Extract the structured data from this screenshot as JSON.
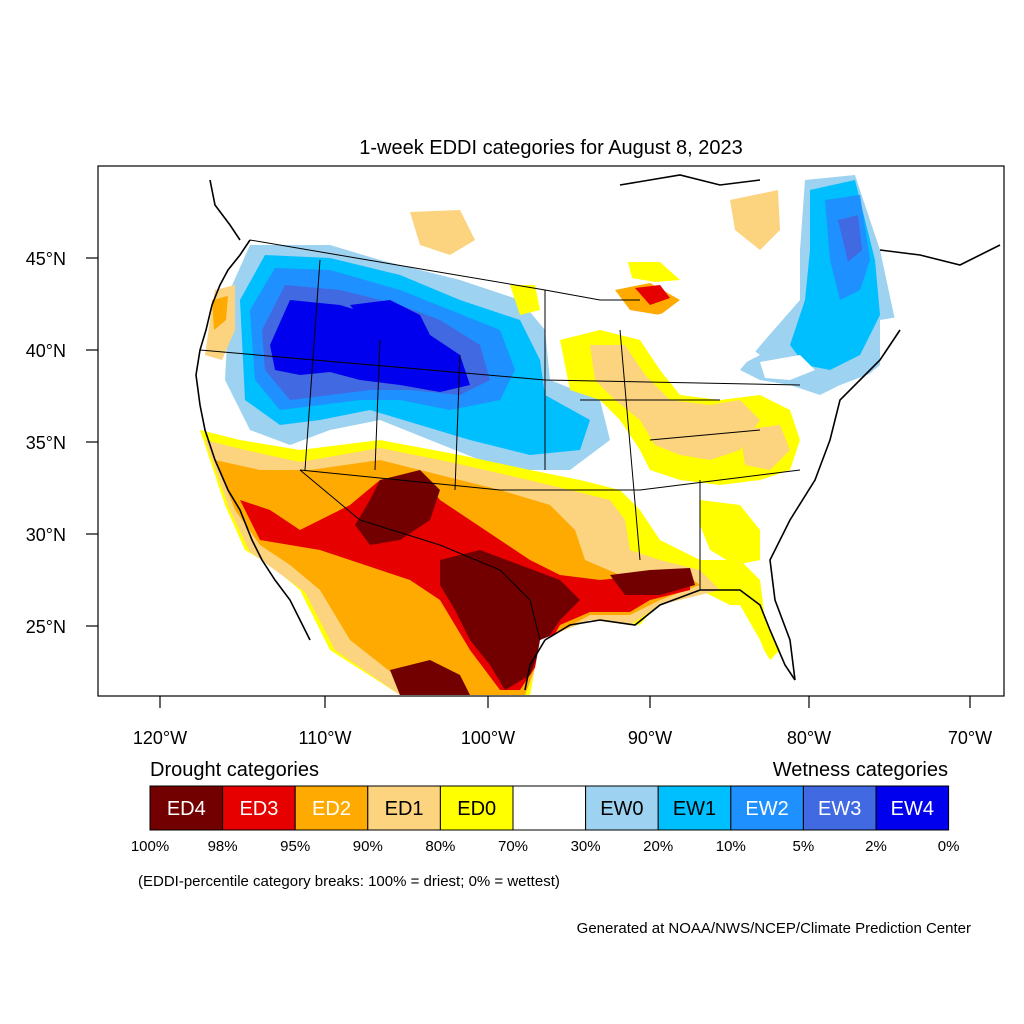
{
  "title": "1-week EDDI categories for August 8, 2023",
  "lat_ticks": [
    "45°N",
    "40°N",
    "35°N",
    "30°N",
    "25°N"
  ],
  "lon_ticks": [
    "120°W",
    "110°W",
    "100°W",
    "90°W",
    "80°W",
    "70°W"
  ],
  "legend": {
    "drought_title": "Drought categories",
    "wetness_title": "Wetness categories",
    "boxes": [
      {
        "label": "ED4",
        "color": "#730000",
        "text_color": "#ffffff"
      },
      {
        "label": "ED3",
        "color": "#e60000",
        "text_color": "#ffffff"
      },
      {
        "label": "ED2",
        "color": "#ffaa00",
        "text_color": "#ffffff"
      },
      {
        "label": "ED1",
        "color": "#fcd37f",
        "text_color": "#000000"
      },
      {
        "label": "ED0",
        "color": "#ffff00",
        "text_color": "#000000"
      },
      {
        "label": "",
        "color": "#ffffff",
        "text_color": "#000000"
      },
      {
        "label": "EW0",
        "color": "#9dd2f0",
        "text_color": "#000000"
      },
      {
        "label": "EW1",
        "color": "#00bfff",
        "text_color": "#000000"
      },
      {
        "label": "EW2",
        "color": "#1e90ff",
        "text_color": "#ffffff"
      },
      {
        "label": "EW3",
        "color": "#4169e1",
        "text_color": "#ffffff"
      },
      {
        "label": "EW4",
        "color": "#0000ee",
        "text_color": "#ffffff"
      }
    ],
    "breaks": [
      "100%",
      "98%",
      "95%",
      "90%",
      "80%",
      "70%",
      "30%",
      "20%",
      "10%",
      "5%",
      "2%",
      "0%"
    ]
  },
  "note": "(EDDI-percentile category breaks: 100% = driest; 0% = wettest)",
  "credit": "Generated at NOAA/NWS/NCEP/Climate Prediction Center"
}
